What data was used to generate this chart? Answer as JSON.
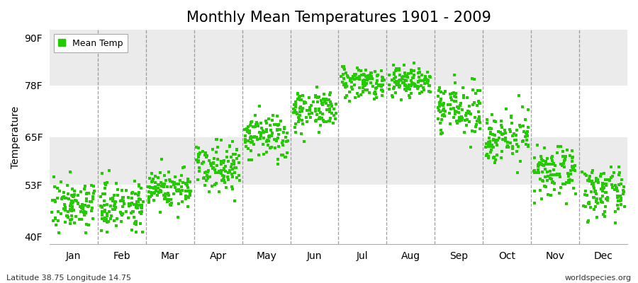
{
  "title": "Monthly Mean Temperatures 1901 - 2009",
  "ylabel": "Temperature",
  "xlabel_labels": [
    "Jan",
    "Feb",
    "Mar",
    "Apr",
    "May",
    "Jun",
    "Jul",
    "Aug",
    "Sep",
    "Oct",
    "Nov",
    "Dec"
  ],
  "ytick_labels": [
    "40F",
    "53F",
    "65F",
    "78F",
    "90F"
  ],
  "ytick_values": [
    40,
    53,
    65,
    78,
    90
  ],
  "ylim": [
    38,
    92
  ],
  "dot_color": "#22cc00",
  "background_color": "#ffffff",
  "plot_bg_color": "#ffffff",
  "band_colors": [
    "#ffffff",
    "#ebebeb"
  ],
  "legend_label": "Mean Temp",
  "footer_left": "Latitude 38.75 Longitude 14.75",
  "footer_right": "worldspecies.org",
  "title_fontsize": 15,
  "axis_fontsize": 10,
  "footer_fontsize": 8,
  "dot_size": 10,
  "monthly_means_F": [
    48,
    48,
    52,
    58,
    65,
    72,
    79,
    79,
    72,
    65,
    56,
    51
  ],
  "monthly_stds_F": [
    3.0,
    3.0,
    2.5,
    3.0,
    3.0,
    2.5,
    2.0,
    2.0,
    3.0,
    3.0,
    3.0,
    3.0
  ],
  "n_points": 109
}
